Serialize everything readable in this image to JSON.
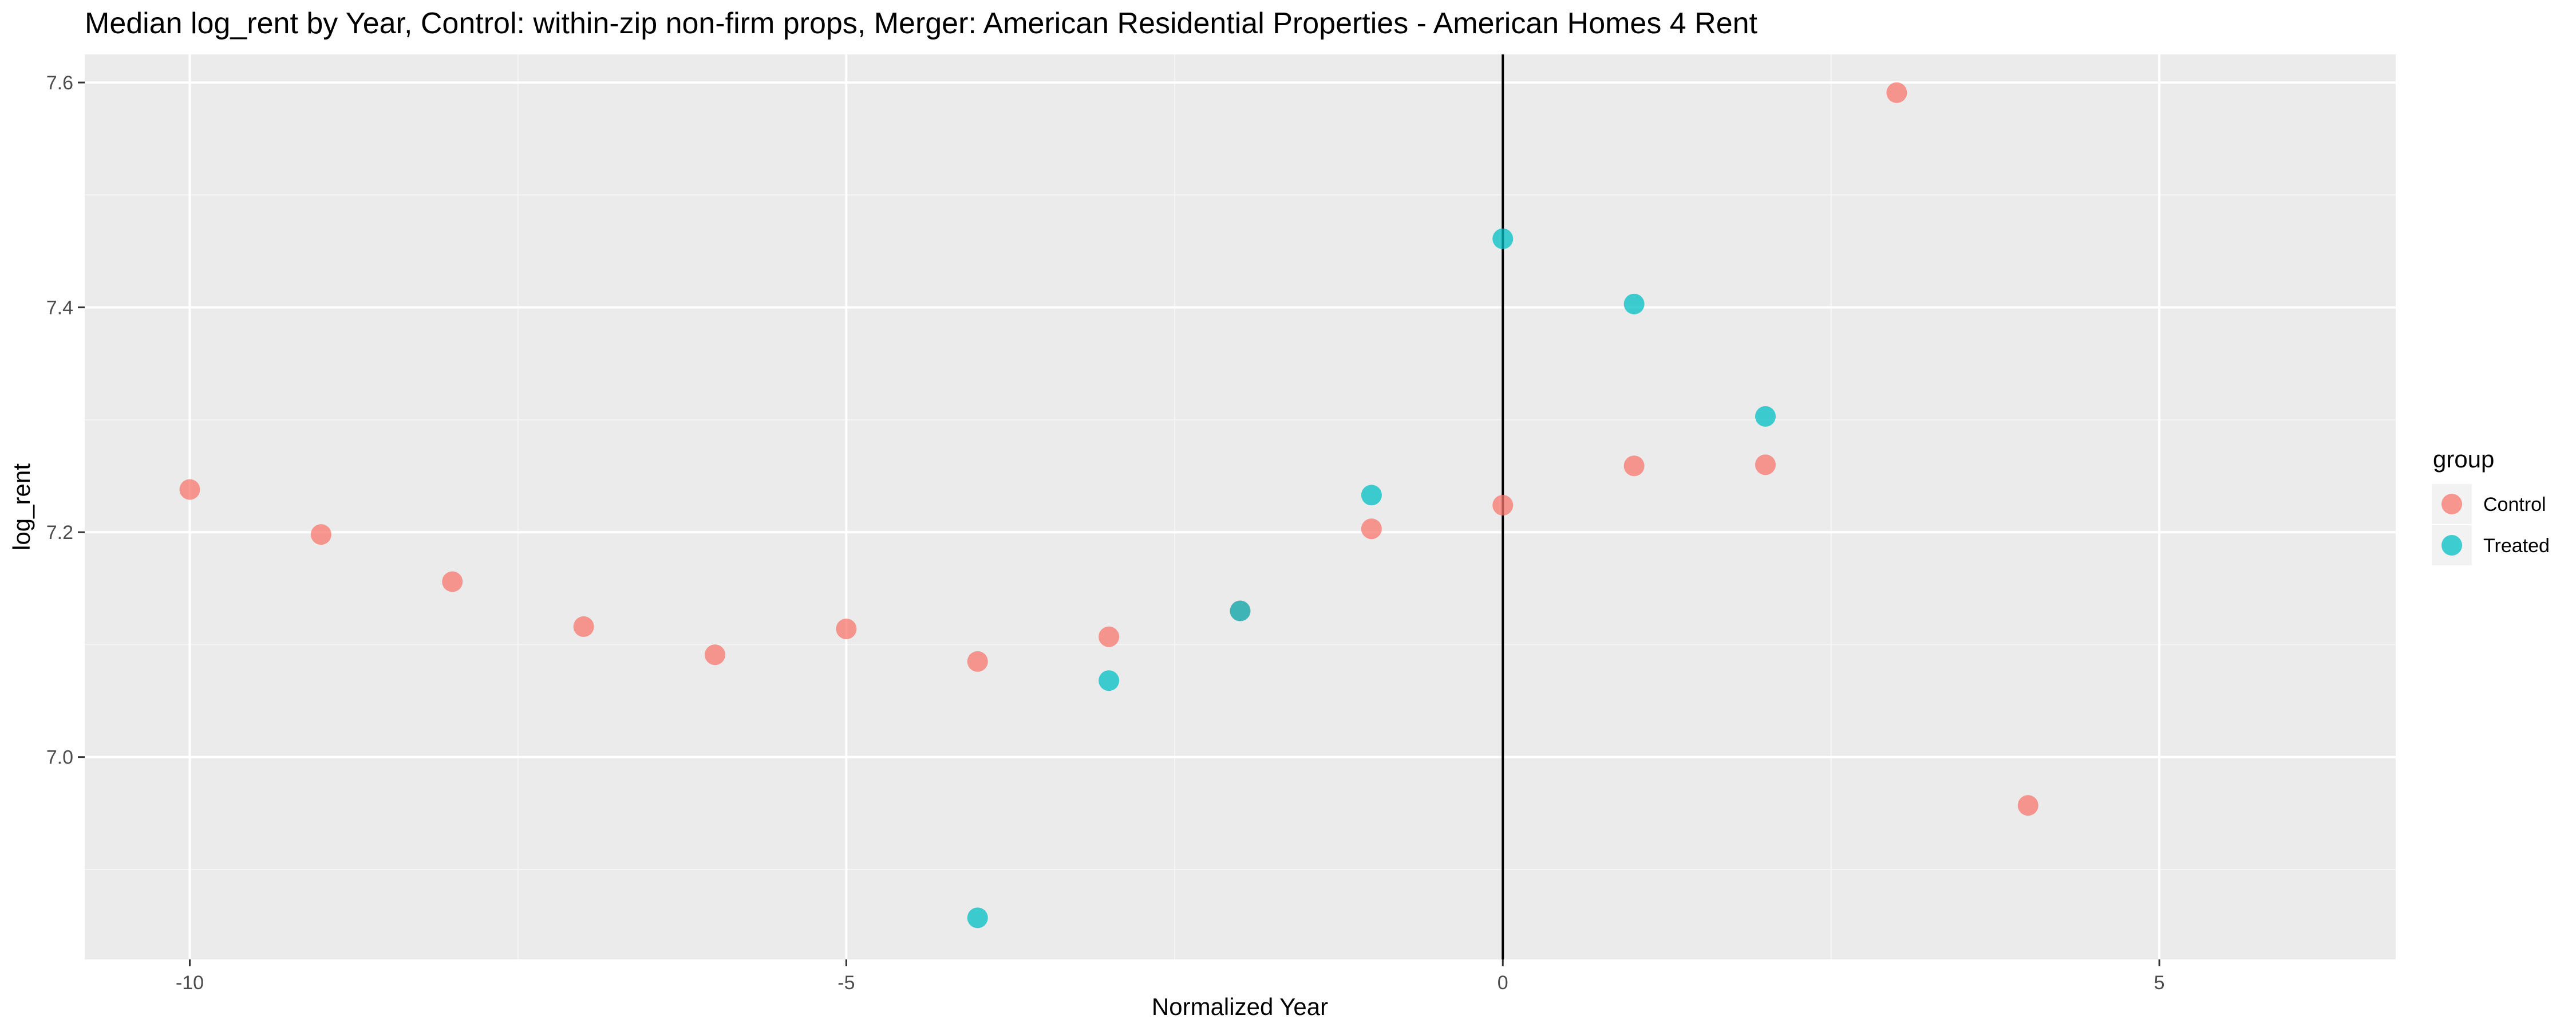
{
  "chart_data": {
    "type": "scatter",
    "title": "Median log_rent by Year, Control: within-zip non-firm props, Merger: American Residential Properties - American Homes 4 Rent",
    "xlabel": "Normalized Year",
    "ylabel": "log_rent",
    "xlim": [
      -10.8,
      6.8
    ],
    "ylim": [
      6.82,
      7.625
    ],
    "x_ticks": [
      -10,
      -5,
      0,
      5
    ],
    "x_tick_labels": [
      "-10",
      "-5",
      "0",
      "5"
    ],
    "y_ticks": [
      7.0,
      7.2,
      7.4,
      7.6
    ],
    "y_tick_labels": [
      "7.0",
      "7.2",
      "7.4",
      "7.6"
    ],
    "grid": true,
    "vline_x": 0,
    "legend": {
      "title": "group",
      "placement": "right"
    },
    "series": [
      {
        "name": "Control",
        "color": "#F8766D",
        "x": [
          -10,
          -9,
          -8,
          -7,
          -6,
          -5,
          -4,
          -3,
          -2,
          -1,
          0,
          1,
          2,
          3,
          4
        ],
        "y": [
          7.238,
          7.198,
          7.156,
          7.116,
          7.091,
          7.114,
          7.085,
          7.107,
          7.13,
          7.203,
          7.224,
          7.259,
          7.26,
          7.591,
          6.957
        ]
      },
      {
        "name": "Treated",
        "color": "#00BFC4",
        "x": [
          -4,
          -3,
          -2,
          -1,
          0,
          1,
          2
        ],
        "y": [
          6.857,
          7.068,
          7.13,
          7.233,
          7.461,
          7.403,
          7.303
        ]
      }
    ]
  }
}
